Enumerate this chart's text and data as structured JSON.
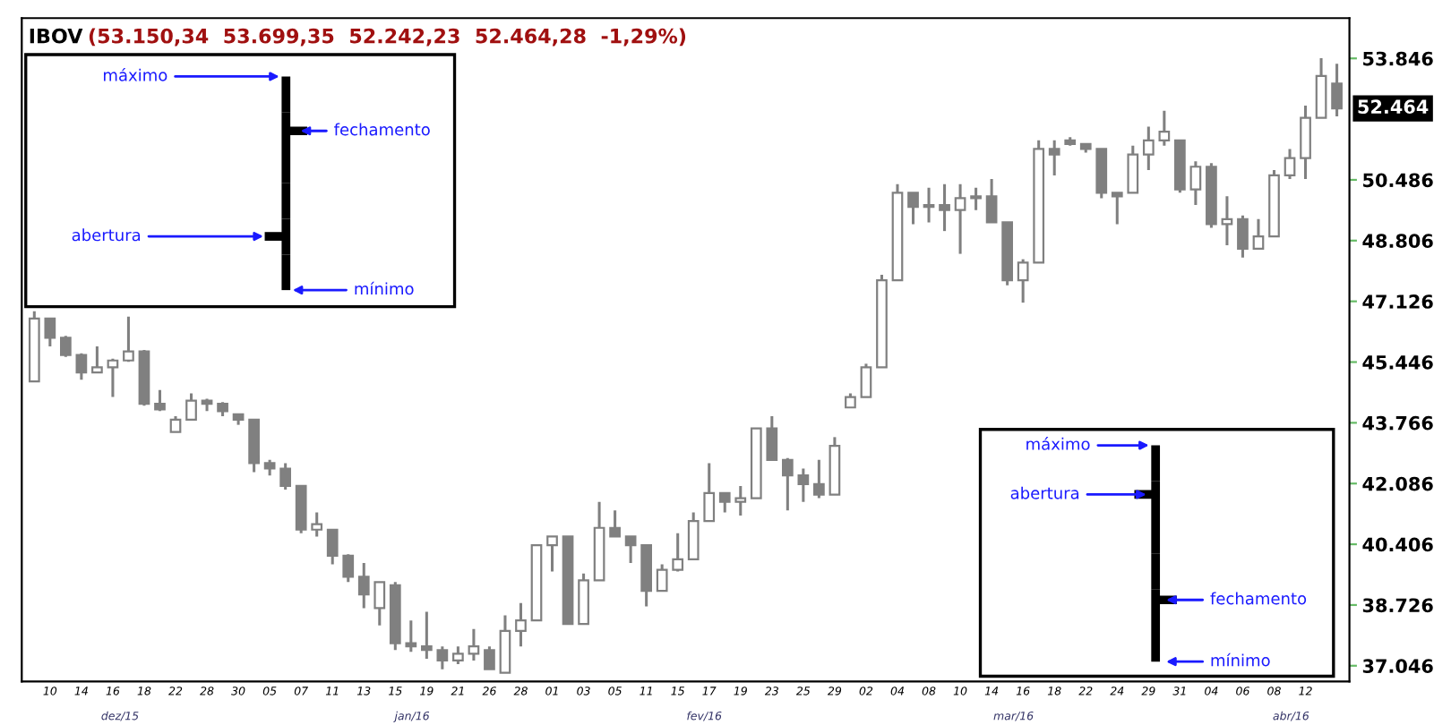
{
  "chart_data": {
    "type": "candlestick",
    "title": "IBOV",
    "subtitle": "(53.150,34  53.699,35  52.242,23  52.464,28  -1,29%)",
    "categories": [
      null,
      "10",
      null,
      "14",
      null,
      "16",
      null,
      "18",
      null,
      "22",
      null,
      "28",
      null,
      "30",
      null,
      "05",
      null,
      "07",
      null,
      "11",
      null,
      "13",
      null,
      "15",
      null,
      "19",
      null,
      "21",
      null,
      "26",
      null,
      "28",
      null,
      "01",
      null,
      "03",
      null,
      "05",
      null,
      "11",
      null,
      "15",
      null,
      "17",
      null,
      "19",
      null,
      "23",
      null,
      "25",
      null,
      "29",
      null,
      "02",
      null,
      "04",
      null,
      "08",
      null,
      "10",
      null,
      "14",
      null,
      "16",
      null,
      "18",
      null,
      "22",
      null,
      "24",
      null,
      "29",
      null,
      "31",
      null,
      "04",
      null,
      "06",
      null,
      "08",
      null,
      "12",
      null,
      null
    ],
    "ohlc": [
      [
        44910,
        46850,
        44910,
        46650
      ],
      [
        46650,
        46650,
        45880,
        46120
      ],
      [
        46120,
        46170,
        45590,
        45640
      ],
      [
        45640,
        45690,
        44960,
        45160
      ],
      [
        45160,
        45880,
        45160,
        45300
      ],
      [
        45300,
        45540,
        44480,
        45490
      ],
      [
        45490,
        46700,
        45450,
        45740
      ],
      [
        45740,
        45780,
        44240,
        44290
      ],
      [
        44290,
        44670,
        44090,
        44140
      ],
      [
        43510,
        43950,
        43510,
        43850
      ],
      [
        43850,
        44580,
        43850,
        44380
      ],
      [
        44380,
        44430,
        44090,
        44290
      ],
      [
        44290,
        44340,
        43950,
        44090
      ],
      [
        44000,
        44000,
        43710,
        43850
      ],
      [
        43850,
        43850,
        42400,
        42650
      ],
      [
        42650,
        42740,
        42310,
        42500
      ],
      [
        42500,
        42650,
        41920,
        42020
      ],
      [
        42020,
        42020,
        40710,
        40810
      ],
      [
        40810,
        41290,
        40620,
        40960
      ],
      [
        40810,
        40810,
        39850,
        40090
      ],
      [
        40090,
        40130,
        39360,
        39510
      ],
      [
        39510,
        39890,
        38640,
        39020
      ],
      [
        38640,
        39360,
        38160,
        39360
      ],
      [
        39270,
        39360,
        37480,
        37670
      ],
      [
        37670,
        38300,
        37430,
        37580
      ],
      [
        37580,
        38540,
        37240,
        37480
      ],
      [
        37480,
        37580,
        36950,
        37190
      ],
      [
        37190,
        37580,
        37090,
        37380
      ],
      [
        37380,
        38060,
        37190,
        37580
      ],
      [
        37480,
        37580,
        36950,
        36950
      ],
      [
        36850,
        38440,
        36850,
        38010
      ],
      [
        38010,
        38780,
        37580,
        38300
      ],
      [
        38300,
        40380,
        38300,
        40380
      ],
      [
        40380,
        40620,
        39650,
        40620
      ],
      [
        40620,
        40620,
        38200,
        38200
      ],
      [
        38200,
        39600,
        38200,
        39410
      ],
      [
        39410,
        41580,
        39410,
        40860
      ],
      [
        40860,
        41340,
        40620,
        40620
      ],
      [
        40620,
        40620,
        39890,
        40380
      ],
      [
        40380,
        40380,
        38690,
        39120
      ],
      [
        39120,
        39850,
        39120,
        39700
      ],
      [
        39700,
        40710,
        39650,
        39990
      ],
      [
        39990,
        41290,
        39990,
        41050
      ],
      [
        41050,
        42650,
        41050,
        41820
      ],
      [
        41820,
        41820,
        41290,
        41580
      ],
      [
        41580,
        42020,
        41200,
        41680
      ],
      [
        41680,
        43610,
        41680,
        43610
      ],
      [
        43610,
        43950,
        42740,
        42740
      ],
      [
        42740,
        42790,
        41340,
        42310
      ],
      [
        42310,
        42500,
        41580,
        42070
      ],
      [
        42070,
        42740,
        41680,
        41780
      ],
      [
        41780,
        43370,
        41780,
        43130
      ],
      [
        44190,
        44580,
        44190,
        44480
      ],
      [
        44480,
        45400,
        44480,
        45300
      ],
      [
        45300,
        47860,
        45300,
        47710
      ],
      [
        47710,
        50370,
        47710,
        50130
      ],
      [
        50130,
        50130,
        49260,
        49740
      ],
      [
        49740,
        50270,
        49310,
        49790
      ],
      [
        49790,
        50370,
        49070,
        49650
      ],
      [
        49650,
        50370,
        48440,
        49980
      ],
      [
        49980,
        50270,
        49650,
        50030
      ],
      [
        50030,
        50510,
        49310,
        49310
      ],
      [
        49310,
        49310,
        47570,
        47710
      ],
      [
        47710,
        48290,
        47090,
        48200
      ],
      [
        48200,
        51580,
        48200,
        51340
      ],
      [
        51340,
        51580,
        50610,
        51190
      ],
      [
        51580,
        51670,
        51430,
        51480
      ],
      [
        51480,
        51480,
        51240,
        51340
      ],
      [
        51340,
        51340,
        49980,
        50130
      ],
      [
        50130,
        50130,
        49260,
        50030
      ],
      [
        50130,
        51430,
        50130,
        51190
      ],
      [
        51190,
        51960,
        50760,
        51580
      ],
      [
        51580,
        52400,
        51430,
        51820
      ],
      [
        51580,
        51580,
        50130,
        50220
      ],
      [
        50220,
        51000,
        49790,
        50850
      ],
      [
        50850,
        50950,
        49160,
        49260
      ],
      [
        49260,
        50030,
        48680,
        49400
      ],
      [
        49400,
        49500,
        48340,
        48580
      ],
      [
        48580,
        49400,
        48580,
        48920
      ],
      [
        48920,
        50760,
        48920,
        50610
      ],
      [
        50610,
        51340,
        50510,
        51090
      ],
      [
        51090,
        52540,
        50510,
        52200
      ],
      [
        52200,
        53850,
        52200,
        53360
      ],
      [
        53150.34,
        53699.35,
        52242.23,
        52464.28
      ]
    ],
    "color": "#808080",
    "ylim": [
      36610,
      54960
    ],
    "yticks": [
      {
        "value": 37046,
        "label": "37.046"
      },
      {
        "value": 38726,
        "label": "38.726"
      },
      {
        "value": 40406,
        "label": "40.406"
      },
      {
        "value": 42086,
        "label": "42.086"
      },
      {
        "value": 43766,
        "label": "43.766"
      },
      {
        "value": 45446,
        "label": "45.446"
      },
      {
        "value": 47126,
        "label": "47.126"
      },
      {
        "value": 48806,
        "label": "48.806"
      },
      {
        "value": 50486,
        "label": "50.486"
      },
      {
        "value": 53846,
        "label": "53.846"
      }
    ],
    "annotations": [
      "máximo",
      "fechamento",
      "abertura",
      "mínimo",
      "máximo",
      "abertura",
      "fechamento",
      "mínimo",
      "dez/15",
      "jan/16",
      "fev/16",
      "mar/16",
      "abr/16",
      "52.464"
    ],
    "grid": false,
    "legend": false
  }
}
